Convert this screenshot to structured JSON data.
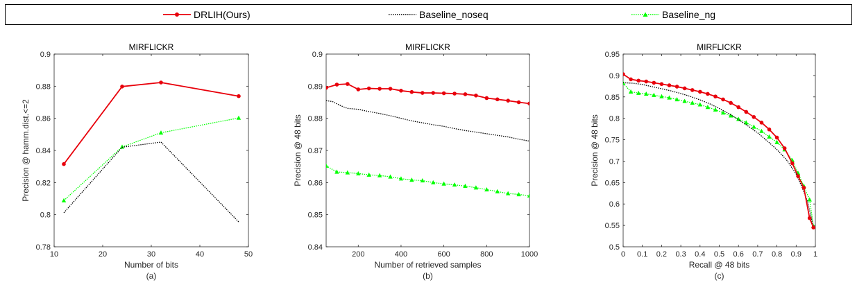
{
  "legend": {
    "entries": [
      {
        "name": "DRLIH(Ours)",
        "color": "#e8000b",
        "dash": "solid",
        "marker": "circle"
      },
      {
        "name": "Baseline_noseq",
        "color": "#000000",
        "dash": "dotted",
        "marker": "none"
      },
      {
        "name": "Baseline_ng",
        "color": "#00ff00",
        "dash": "dotted",
        "marker": "triangle"
      }
    ]
  },
  "chart_data": [
    {
      "type": "line",
      "title": "MIRFLICKR",
      "xlabel": "Number of bits",
      "ylabel": "Precision @ hamm.dist.<=2",
      "sublabel": "(a)",
      "xlim": [
        10,
        50
      ],
      "ylim": [
        0.78,
        0.9
      ],
      "xticks": [
        10,
        20,
        30,
        40,
        50
      ],
      "yticks": [
        0.78,
        0.8,
        0.82,
        0.84,
        0.86,
        0.88,
        0.9
      ],
      "xtick_labels": [
        "10",
        "20",
        "30",
        "40",
        "50"
      ],
      "ytick_labels": [
        "0.78",
        "0.8",
        "0.82",
        "0.84",
        "0.86",
        "0.88",
        "0.9"
      ],
      "series": [
        {
          "name": "DRLIH(Ours)",
          "x": [
            12,
            24,
            32,
            48
          ],
          "y": [
            0.8315,
            0.8798,
            0.8823,
            0.8738
          ]
        },
        {
          "name": "Baseline_noseq",
          "x": [
            12,
            24,
            32,
            48
          ],
          "y": [
            0.8012,
            0.842,
            0.8452,
            0.7955
          ]
        },
        {
          "name": "Baseline_ng",
          "x": [
            12,
            24,
            32,
            48
          ],
          "y": [
            0.8088,
            0.8422,
            0.851,
            0.8602
          ]
        }
      ]
    },
    {
      "type": "line",
      "title": "MIRFLICKR",
      "xlabel": "Number of retrieved samples",
      "ylabel": "Precision @ 48 bits",
      "sublabel": "(b)",
      "xlim": [
        50,
        1000
      ],
      "ylim": [
        0.84,
        0.9
      ],
      "xticks": [
        200,
        400,
        600,
        800,
        1000
      ],
      "yticks": [
        0.84,
        0.85,
        0.86,
        0.87,
        0.88,
        0.89,
        0.9
      ],
      "xtick_labels": [
        "200",
        "400",
        "600",
        "800",
        "1000"
      ],
      "ytick_labels": [
        "0.84",
        "0.85",
        "0.86",
        "0.87",
        "0.88",
        "0.89",
        "0.9"
      ],
      "series": [
        {
          "name": "DRLIH(Ours)",
          "x": [
            50,
            100,
            150,
            200,
            250,
            300,
            350,
            400,
            450,
            500,
            550,
            600,
            650,
            700,
            750,
            800,
            850,
            900,
            950,
            1000
          ],
          "y": [
            0.8895,
            0.8905,
            0.8907,
            0.889,
            0.8893,
            0.8892,
            0.8892,
            0.8886,
            0.8882,
            0.8879,
            0.8879,
            0.8878,
            0.8877,
            0.8875,
            0.8871,
            0.8863,
            0.8859,
            0.8855,
            0.885,
            0.8846
          ]
        },
        {
          "name": "Baseline_noseq",
          "x": [
            50,
            80,
            100,
            130,
            150,
            200,
            250,
            300,
            350,
            400,
            450,
            500,
            550,
            600,
            650,
            700,
            750,
            800,
            850,
            900,
            950,
            1000
          ],
          "y": [
            0.8855,
            0.8852,
            0.8845,
            0.8836,
            0.8831,
            0.8828,
            0.8821,
            0.8815,
            0.8808,
            0.88,
            0.8792,
            0.8786,
            0.878,
            0.8775,
            0.8768,
            0.8762,
            0.8757,
            0.8752,
            0.8747,
            0.8742,
            0.8735,
            0.8729
          ]
        },
        {
          "name": "Baseline_ng",
          "x": [
            50,
            100,
            150,
            200,
            250,
            300,
            350,
            400,
            450,
            500,
            550,
            600,
            650,
            700,
            750,
            800,
            850,
            900,
            950,
            1000
          ],
          "y": [
            0.8652,
            0.8633,
            0.8631,
            0.8628,
            0.8624,
            0.8622,
            0.8618,
            0.8612,
            0.8608,
            0.8606,
            0.86,
            0.8596,
            0.8593,
            0.8589,
            0.8584,
            0.8578,
            0.8572,
            0.8566,
            0.8563,
            0.8559
          ]
        }
      ]
    },
    {
      "type": "line",
      "title": "MIRFLICKR",
      "xlabel": "Recall @ 48 bits",
      "ylabel": "Precision @ 48 bits",
      "sublabel": "(c)",
      "xlim": [
        0,
        1
      ],
      "ylim": [
        0.5,
        0.95
      ],
      "xticks": [
        0,
        0.1,
        0.2,
        0.3,
        0.4,
        0.5,
        0.6,
        0.7,
        0.8,
        0.9,
        1
      ],
      "yticks": [
        0.5,
        0.55,
        0.6,
        0.65,
        0.7,
        0.75,
        0.8,
        0.85,
        0.9,
        0.95
      ],
      "xtick_labels": [
        "0",
        "0.1",
        "0.2",
        "0.3",
        "0.4",
        "0.5",
        "0.6",
        "0.7",
        "0.8",
        "0.9",
        "1"
      ],
      "ytick_labels": [
        "0.5",
        "0.55",
        "0.6",
        "0.65",
        "0.7",
        "0.75",
        "0.8",
        "0.85",
        "0.9",
        "0.95"
      ],
      "series": [
        {
          "name": "DRLIH(Ours)",
          "x": [
            0,
            0.04,
            0.08,
            0.12,
            0.16,
            0.2,
            0.24,
            0.28,
            0.32,
            0.36,
            0.4,
            0.44,
            0.48,
            0.52,
            0.56,
            0.6,
            0.64,
            0.68,
            0.72,
            0.76,
            0.8,
            0.84,
            0.88,
            0.91,
            0.94,
            0.97,
            0.99
          ],
          "y": [
            0.903,
            0.891,
            0.888,
            0.886,
            0.883,
            0.88,
            0.877,
            0.874,
            0.87,
            0.866,
            0.862,
            0.857,
            0.851,
            0.844,
            0.836,
            0.826,
            0.815,
            0.803,
            0.79,
            0.774,
            0.755,
            0.73,
            0.695,
            0.665,
            0.638,
            0.567,
            0.545
          ]
        },
        {
          "name": "Baseline_noseq",
          "x": [
            0,
            0.05,
            0.1,
            0.15,
            0.2,
            0.25,
            0.3,
            0.35,
            0.4,
            0.45,
            0.5,
            0.55,
            0.6,
            0.65,
            0.7,
            0.75,
            0.8,
            0.85,
            0.9,
            0.93,
            0.96,
            0.98,
            0.99
          ],
          "y": [
            0.883,
            0.882,
            0.879,
            0.874,
            0.869,
            0.864,
            0.858,
            0.851,
            0.843,
            0.834,
            0.823,
            0.811,
            0.797,
            0.782,
            0.766,
            0.747,
            0.727,
            0.703,
            0.67,
            0.64,
            0.605,
            0.565,
            0.545
          ]
        },
        {
          "name": "Baseline_ng",
          "x": [
            0,
            0.04,
            0.08,
            0.12,
            0.16,
            0.2,
            0.24,
            0.28,
            0.32,
            0.36,
            0.4,
            0.44,
            0.48,
            0.52,
            0.56,
            0.6,
            0.64,
            0.68,
            0.72,
            0.76,
            0.8,
            0.84,
            0.88,
            0.91,
            0.94,
            0.97,
            0.99
          ],
          "y": [
            0.882,
            0.862,
            0.859,
            0.857,
            0.854,
            0.851,
            0.848,
            0.844,
            0.84,
            0.836,
            0.832,
            0.826,
            0.82,
            0.813,
            0.806,
            0.798,
            0.79,
            0.78,
            0.77,
            0.757,
            0.744,
            0.727,
            0.702,
            0.672,
            0.642,
            0.61,
            0.548
          ]
        }
      ]
    }
  ]
}
